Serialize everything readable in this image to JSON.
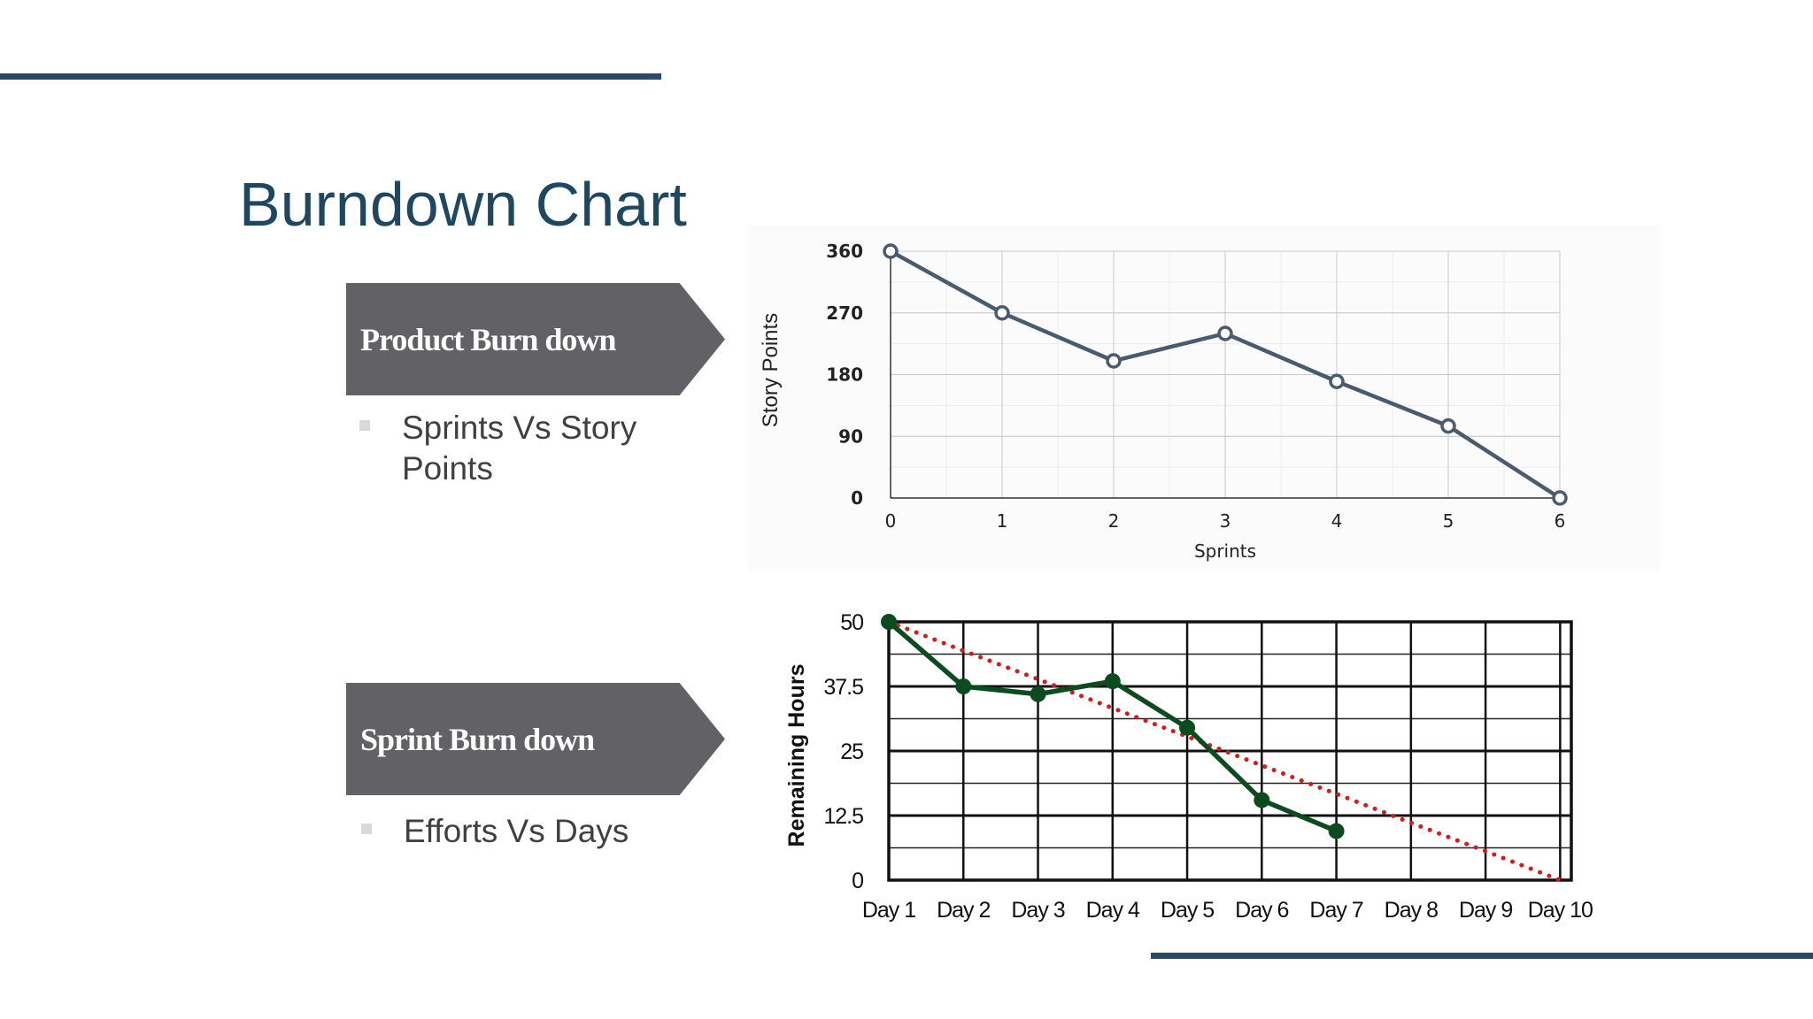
{
  "slide": {
    "title": "Burndown Chart"
  },
  "sections": [
    {
      "tag": "Product Burn down",
      "bullet": "Sprints Vs Story Points"
    },
    {
      "tag": "Sprint Burn down",
      "bullet": "Efforts Vs Days"
    }
  ],
  "colors": {
    "accent_line": "#2b4962",
    "title": "#1f4860",
    "tag_fill": "#626165",
    "product_line": "#4a5b6d",
    "sprint_line": "#0e4a1f",
    "ideal_line": "#cc1f1f"
  },
  "chart_data": [
    {
      "type": "line",
      "title": "",
      "xlabel": "Sprints",
      "ylabel": "Story Points",
      "x": [
        0,
        1,
        2,
        3,
        4,
        5,
        6
      ],
      "xticks": [
        "0",
        "1",
        "2",
        "3",
        "4",
        "5",
        "6"
      ],
      "yticks": [
        "0",
        "90",
        "180",
        "270",
        "360"
      ],
      "ylim": [
        0,
        360
      ],
      "grid": true,
      "series": [
        {
          "values": [
            360,
            270,
            200,
            240,
            170,
            105,
            0
          ]
        }
      ]
    },
    {
      "type": "line",
      "title": "",
      "xlabel": "",
      "ylabel": "Remaining Hours",
      "categories": [
        "Day 1",
        "Day 2",
        "Day 3",
        "Day 4",
        "Day 5",
        "Day 6",
        "Day 7",
        "Day 8",
        "Day 9",
        "Day 10"
      ],
      "yticks": [
        "0",
        "12.5",
        "25",
        "37.5",
        "50"
      ],
      "ylim": [
        0,
        50
      ],
      "grid": true,
      "series": [
        {
          "values": [
            50,
            37.5,
            36,
            38.5,
            29.5,
            15.5,
            9.5,
            null,
            null,
            null
          ],
          "style": "solid-markers"
        },
        {
          "values": [
            50,
            44.4,
            38.9,
            33.3,
            27.8,
            22.2,
            16.7,
            11.1,
            5.6,
            0
          ],
          "style": "dotted"
        }
      ]
    }
  ]
}
